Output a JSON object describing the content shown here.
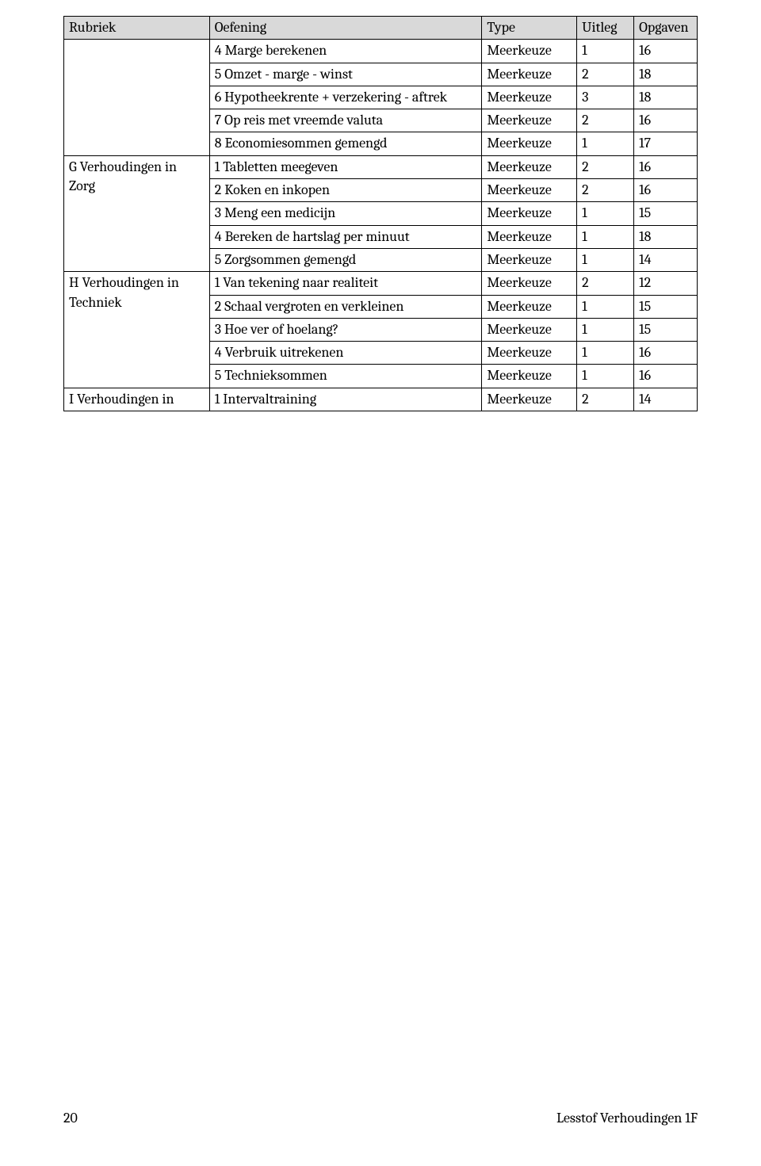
{
  "table": {
    "headers": [
      "Rubriek",
      "Oefening",
      "Type",
      "Uitleg",
      "Opgaven"
    ],
    "groups": [
      {
        "rubriek": "",
        "rows": [
          {
            "oef": "4 Marge berekenen",
            "type": "Meerkeuze",
            "uitleg": "1",
            "opgaven": "16"
          },
          {
            "oef": "5 Omzet - marge - winst",
            "type": "Meerkeuze",
            "uitleg": "2",
            "opgaven": "18"
          },
          {
            "oef": "6 Hypotheekrente + verzekering - aftrek",
            "type": "Meerkeuze",
            "uitleg": "3",
            "opgaven": "18"
          },
          {
            "oef": "7 Op reis met vreemde valuta",
            "type": "Meerkeuze",
            "uitleg": "2",
            "opgaven": "16"
          },
          {
            "oef": "8 Economiesommen gemengd",
            "type": "Meerkeuze",
            "uitleg": "1",
            "opgaven": "17"
          }
        ]
      },
      {
        "rubriek": "G Verhoudingen in Zorg",
        "rows": [
          {
            "oef": "1 Tabletten meegeven",
            "type": "Meerkeuze",
            "uitleg": "2",
            "opgaven": "16"
          },
          {
            "oef": "2 Koken en inkopen",
            "type": "Meerkeuze",
            "uitleg": "2",
            "opgaven": "16"
          },
          {
            "oef": "3 Meng een medicijn",
            "type": "Meerkeuze",
            "uitleg": "1",
            "opgaven": "15"
          },
          {
            "oef": "4 Bereken de hartslag per minuut",
            "type": "Meerkeuze",
            "uitleg": "1",
            "opgaven": "18"
          },
          {
            "oef": "5 Zorgsommen gemengd",
            "type": "Meerkeuze",
            "uitleg": "1",
            "opgaven": "14"
          }
        ]
      },
      {
        "rubriek": "H Verhoudingen in Techniek",
        "rows": [
          {
            "oef": "1 Van tekening naar realiteit",
            "type": "Meerkeuze",
            "uitleg": "2",
            "opgaven": "12"
          },
          {
            "oef": "2 Schaal vergroten en verkleinen",
            "type": "Meerkeuze",
            "uitleg": "1",
            "opgaven": "15"
          },
          {
            "oef": "3 Hoe ver of hoelang?",
            "type": "Meerkeuze",
            "uitleg": "1",
            "opgaven": "15"
          },
          {
            "oef": "4 Verbruik uitrekenen",
            "type": "Meerkeuze",
            "uitleg": "1",
            "opgaven": "16"
          },
          {
            "oef": "5 Technieksommen",
            "type": "Meerkeuze",
            "uitleg": "1",
            "opgaven": "16"
          }
        ]
      },
      {
        "rubriek": "I Verhoudingen in",
        "rows": [
          {
            "oef": "1 Intervaltraining",
            "type": "Meerkeuze",
            "uitleg": "2",
            "opgaven": "14"
          }
        ]
      }
    ]
  },
  "footer": {
    "pageNumber": "20",
    "title": "Lesstof Verhoudingen 1F"
  }
}
